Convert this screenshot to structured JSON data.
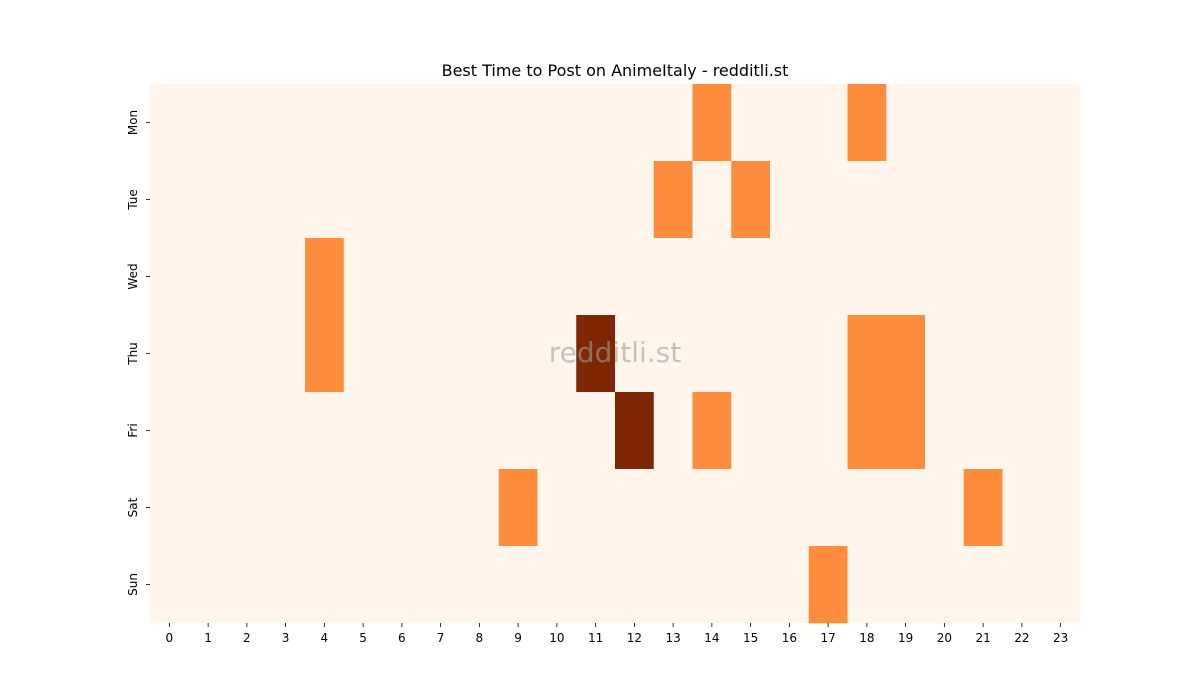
{
  "chart_data": {
    "type": "heatmap",
    "title": "Best Time to Post on AnimeItaly - redditli.st",
    "watermark": "redditli.st",
    "x_categories": [
      "0",
      "1",
      "2",
      "3",
      "4",
      "5",
      "6",
      "7",
      "8",
      "9",
      "10",
      "11",
      "12",
      "13",
      "14",
      "15",
      "16",
      "17",
      "18",
      "19",
      "20",
      "21",
      "22",
      "23"
    ],
    "y_categories": [
      "Mon",
      "Tue",
      "Wed",
      "Thu",
      "Fri",
      "Sat",
      "Sun"
    ],
    "values": [
      [
        0,
        0,
        0,
        0,
        0,
        0,
        0,
        0,
        0,
        0,
        0,
        0,
        0,
        0,
        1,
        0,
        0,
        0,
        1,
        0,
        0,
        0,
        0,
        0
      ],
      [
        0,
        0,
        0,
        0,
        0,
        0,
        0,
        0,
        0,
        0,
        0,
        0,
        0,
        1,
        0,
        1,
        0,
        0,
        0,
        0,
        0,
        0,
        0,
        0
      ],
      [
        0,
        0,
        0,
        0,
        1,
        0,
        0,
        0,
        0,
        0,
        0,
        0,
        0,
        0,
        0,
        0,
        0,
        0,
        0,
        0,
        0,
        0,
        0,
        0
      ],
      [
        0,
        0,
        0,
        0,
        1,
        0,
        0,
        0,
        0,
        0,
        0,
        2,
        0,
        0,
        0,
        0,
        0,
        0,
        1,
        1,
        0,
        0,
        0,
        0
      ],
      [
        0,
        0,
        0,
        0,
        0,
        0,
        0,
        0,
        0,
        0,
        0,
        0,
        2,
        0,
        1,
        0,
        0,
        0,
        1,
        1,
        0,
        0,
        0,
        0
      ],
      [
        0,
        0,
        0,
        0,
        0,
        0,
        0,
        0,
        0,
        1,
        0,
        0,
        0,
        0,
        0,
        0,
        0,
        0,
        0,
        0,
        0,
        1,
        0,
        0
      ],
      [
        0,
        0,
        0,
        0,
        0,
        0,
        0,
        0,
        0,
        0,
        0,
        0,
        0,
        0,
        0,
        0,
        0,
        1,
        0,
        0,
        0,
        0,
        0,
        0
      ]
    ],
    "colormap": "Oranges",
    "colors": {
      "0": "#fff5eb",
      "1": "#fd8d3c",
      "2": "#7f2704"
    },
    "xlabel": "",
    "ylabel": "",
    "colorbar": false
  }
}
